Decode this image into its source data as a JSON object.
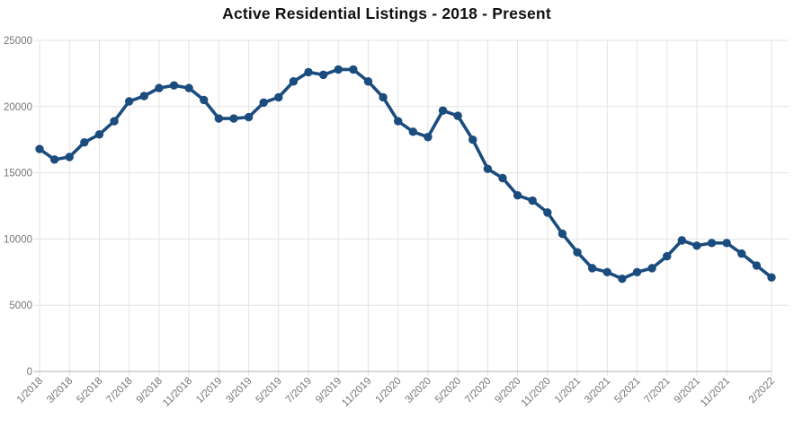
{
  "page": {
    "background": "#ffffff"
  },
  "chart_data": {
    "type": "line",
    "title": "Active Residential Listings - 2018 - Present",
    "x": [
      "1/2018",
      "2/2018",
      "3/2018",
      "4/2018",
      "5/2018",
      "6/2018",
      "7/2018",
      "8/2018",
      "9/2018",
      "10/2018",
      "11/2018",
      "12/2018",
      "1/2019",
      "2/2019",
      "3/2019",
      "4/2019",
      "5/2019",
      "6/2019",
      "7/2019",
      "8/2019",
      "9/2019",
      "10/2019",
      "11/2019",
      "12/2019",
      "1/2020",
      "2/2020",
      "3/2020",
      "4/2020",
      "5/2020",
      "6/2020",
      "7/2020",
      "8/2020",
      "9/2020",
      "10/2020",
      "11/2020",
      "12/2020",
      "1/2021",
      "2/2021",
      "3/2021",
      "4/2021",
      "5/2021",
      "6/2021",
      "7/2021",
      "8/2021",
      "9/2021",
      "10/2021",
      "11/2021",
      "12/2021",
      "1/2022",
      "2/2022"
    ],
    "series": [
      {
        "name": "Active Residential Listings",
        "values": [
          16800,
          16000,
          16200,
          17300,
          17900,
          18900,
          20400,
          20800,
          21400,
          21600,
          21400,
          20500,
          19100,
          19100,
          19200,
          20300,
          20700,
          21900,
          22600,
          22400,
          22800,
          22800,
          21900,
          20700,
          18900,
          18100,
          17700,
          19700,
          19300,
          17500,
          15300,
          14600,
          13300,
          12900,
          12000,
          10400,
          9000,
          7800,
          7500,
          7000,
          7500,
          7800,
          8700,
          9900,
          9500,
          9700,
          9700,
          8900,
          8000,
          7100
        ]
      }
    ],
    "x_tick_labels": [
      "1/2018",
      "3/2018",
      "5/2018",
      "7/2018",
      "9/2018",
      "11/2018",
      "1/2019",
      "3/2019",
      "5/2019",
      "7/2019",
      "9/2019",
      "11/2019",
      "1/2020",
      "3/2020",
      "5/2020",
      "7/2020",
      "9/2020",
      "11/2020",
      "1/2021",
      "3/2021",
      "5/2021",
      "7/2021",
      "9/2021",
      "11/2021",
      "2/2022"
    ],
    "x_tick_indices": [
      0,
      2,
      4,
      6,
      8,
      10,
      12,
      14,
      16,
      18,
      20,
      22,
      24,
      26,
      28,
      30,
      32,
      34,
      36,
      38,
      40,
      42,
      44,
      46,
      49
    ],
    "y_ticks": [
      0,
      5000,
      10000,
      15000,
      20000,
      25000
    ],
    "ylim": [
      0,
      25000
    ],
    "grid": "on",
    "legend": "none",
    "line_color": "#1b4c7e",
    "marker_color": "#1b4c7e",
    "title_color": "#111111",
    "axis_label_color": "#757575",
    "gridline_color": "#e3e3e3",
    "axis_line_color": "#b3b3b3"
  }
}
